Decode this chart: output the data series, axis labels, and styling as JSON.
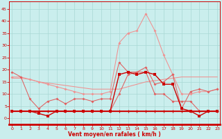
{
  "x": [
    0,
    1,
    2,
    3,
    4,
    5,
    6,
    7,
    8,
    9,
    10,
    11,
    12,
    13,
    14,
    15,
    16,
    17,
    18,
    19,
    20,
    21,
    22,
    23
  ],
  "series": {
    "hist_rafales": [
      17,
      17,
      16,
      15,
      14,
      13,
      12,
      11,
      10,
      10,
      10,
      11,
      31,
      35,
      36,
      43,
      36,
      26,
      18,
      10,
      10,
      11,
      11,
      12
    ],
    "hist_moy": [
      16,
      17,
      16,
      15,
      14,
      13,
      12,
      11,
      10,
      10,
      10,
      11,
      22,
      24,
      24,
      25,
      24,
      22,
      18,
      10,
      10,
      11,
      11,
      12
    ],
    "hist_flat1": [
      16.5,
      16.5,
      16,
      15,
      14.5,
      14,
      13.5,
      13,
      12.5,
      12,
      12,
      12,
      12,
      13,
      14,
      15,
      15.5,
      16,
      16.5,
      17,
      17,
      17,
      17,
      17
    ],
    "hist_moy2": [
      19,
      17,
      8,
      4,
      7,
      8,
      6,
      8,
      8,
      7,
      8,
      8,
      23,
      19,
      19,
      21,
      14,
      15,
      18,
      4,
      11,
      12,
      11,
      12
    ],
    "cur_rafales": [
      3,
      3,
      3,
      2,
      1,
      3,
      3,
      3,
      3,
      3,
      3,
      3,
      18,
      19,
      18,
      19,
      18,
      14,
      14,
      4,
      3,
      1,
      3,
      3
    ],
    "cur_moy": [
      3,
      3,
      3,
      3,
      3,
      3,
      3,
      3,
      3,
      3,
      3,
      3,
      10,
      18,
      19,
      19,
      10,
      10,
      7,
      7,
      7,
      3,
      3,
      3
    ],
    "flat_low": [
      3,
      3,
      3,
      3,
      3,
      3,
      3,
      3,
      3,
      3,
      3,
      3,
      3,
      3,
      3,
      3,
      3,
      3,
      3,
      3,
      3,
      3,
      3,
      3
    ],
    "flat_low2": [
      3,
      3,
      3,
      3,
      3,
      3,
      3,
      3,
      3,
      3,
      3,
      3,
      3,
      3,
      3,
      3,
      3,
      3,
      3,
      3,
      3,
      3,
      3,
      3
    ]
  },
  "lc": "#f09090",
  "mc": "#e06060",
  "dc": "#cc0000",
  "bg": "#caeeed",
  "grid_c": "#a8d8d4",
  "xlabel": "Vent moyen/en rafales ( km/h )",
  "yticks": [
    0,
    5,
    10,
    15,
    20,
    25,
    30,
    35,
    40,
    45
  ],
  "xticks": [
    0,
    1,
    2,
    3,
    4,
    5,
    6,
    7,
    8,
    9,
    10,
    11,
    12,
    13,
    14,
    15,
    16,
    17,
    18,
    19,
    20,
    21,
    22,
    23
  ],
  "ylim": [
    -2.5,
    48
  ],
  "xlim": [
    -0.3,
    23.3
  ]
}
